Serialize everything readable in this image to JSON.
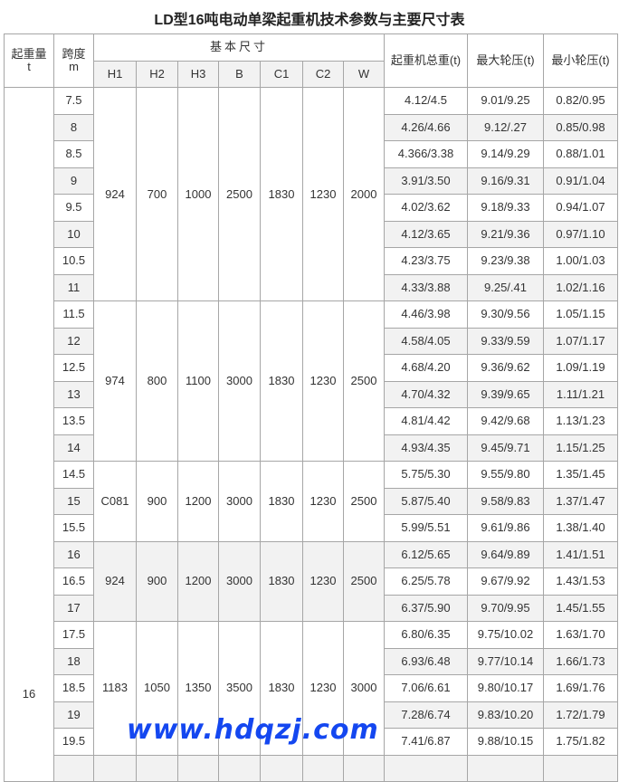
{
  "title": "LD型16吨电动单梁起重机技术参数与主要尺寸表",
  "headers": {
    "capacity": "起重量",
    "capacity_unit": "t",
    "span": "跨度",
    "span_unit": "m",
    "basic_dims": "基本尺寸",
    "dims": [
      "H1",
      "H2",
      "H3",
      "B",
      "C1",
      "C2",
      "W"
    ],
    "total_weight": "起重机总重(t)",
    "max_wheel": "最大轮压(t)",
    "min_wheel": "最小轮压(t)"
  },
  "capacity": "16",
  "groups": [
    {
      "dims": [
        "924",
        "700",
        "1000",
        "2500",
        "1830",
        "1230",
        "2000"
      ],
      "rows": [
        [
          "7.5",
          "4.12/4.5",
          "9.01/9.25",
          "0.82/0.95"
        ],
        [
          "8",
          "4.26/4.66",
          "9.12/.27",
          "0.85/0.98"
        ],
        [
          "8.5",
          "4.366/3.38",
          "9.14/9.29",
          "0.88/1.01"
        ],
        [
          "9",
          "3.91/3.50",
          "9.16/9.31",
          "0.91/1.04"
        ],
        [
          "9.5",
          "4.02/3.62",
          "9.18/9.33",
          "0.94/1.07"
        ],
        [
          "10",
          "4.12/3.65",
          "9.21/9.36",
          "0.97/1.10"
        ],
        [
          "10.5",
          "4.23/3.75",
          "9.23/9.38",
          "1.00/1.03"
        ],
        [
          "11",
          "4.33/3.88",
          "9.25/.41",
          "1.02/1.16"
        ]
      ]
    },
    {
      "dims": [
        "974",
        "800",
        "1100",
        "3000",
        "1830",
        "1230",
        "2500"
      ],
      "rows": [
        [
          "11.5",
          "4.46/3.98",
          "9.30/9.56",
          "1.05/1.15"
        ],
        [
          "12",
          "4.58/4.05",
          "9.33/9.59",
          "1.07/1.17"
        ],
        [
          "12.5",
          "4.68/4.20",
          "9.36/9.62",
          "1.09/1.19"
        ],
        [
          "13",
          "4.70/4.32",
          "9.39/9.65",
          "1.11/1.21"
        ],
        [
          "13.5",
          "4.81/4.42",
          "9.42/9.68",
          "1.13/1.23"
        ],
        [
          "14",
          "4.93/4.35",
          "9.45/9.71",
          "1.15/1.25"
        ]
      ]
    },
    {
      "dims": [
        "C081",
        "900",
        "1200",
        "3000",
        "1830",
        "1230",
        "2500"
      ],
      "rows": [
        [
          "14.5",
          "5.75/5.30",
          "9.55/9.80",
          "1.35/1.45"
        ],
        [
          "15",
          "5.87/5.40",
          "9.58/9.83",
          "1.37/1.47"
        ],
        [
          "15.5",
          "5.99/5.51",
          "9.61/9.86",
          "1.38/1.40"
        ]
      ]
    },
    {
      "dims": [
        "924",
        "900",
        "1200",
        "3000",
        "1830",
        "1230",
        "2500"
      ],
      "shaded": true,
      "rows": [
        [
          "16",
          "6.12/5.65",
          "9.64/9.89",
          "1.41/1.51"
        ],
        [
          "16.5",
          "6.25/5.78",
          "9.67/9.92",
          "1.43/1.53"
        ],
        [
          "17",
          "6.37/5.90",
          "9.70/9.95",
          "1.45/1.55"
        ]
      ]
    },
    {
      "dims": [
        "1183",
        "1050",
        "1350",
        "3500",
        "1830",
        "1230",
        "3000"
      ],
      "rows": [
        [
          "17.5",
          "6.80/6.35",
          "9.75/10.02",
          "1.63/1.70"
        ],
        [
          "18",
          "6.93/6.48",
          "9.77/10.14",
          "1.66/1.73"
        ],
        [
          "18.5",
          "7.06/6.61",
          "9.80/10.17",
          "1.69/1.76"
        ],
        [
          "19",
          "7.28/6.74",
          "9.83/10.20",
          "1.72/1.79"
        ],
        [
          "19.5",
          "7.41/6.87",
          "9.88/10.15",
          "1.75/1.82"
        ]
      ]
    }
  ],
  "watermark": "www.hdqzj.com",
  "colors": {
    "border": "#a6a6a6",
    "shade": "#f2f2f2",
    "watermark": "#1447f0"
  }
}
